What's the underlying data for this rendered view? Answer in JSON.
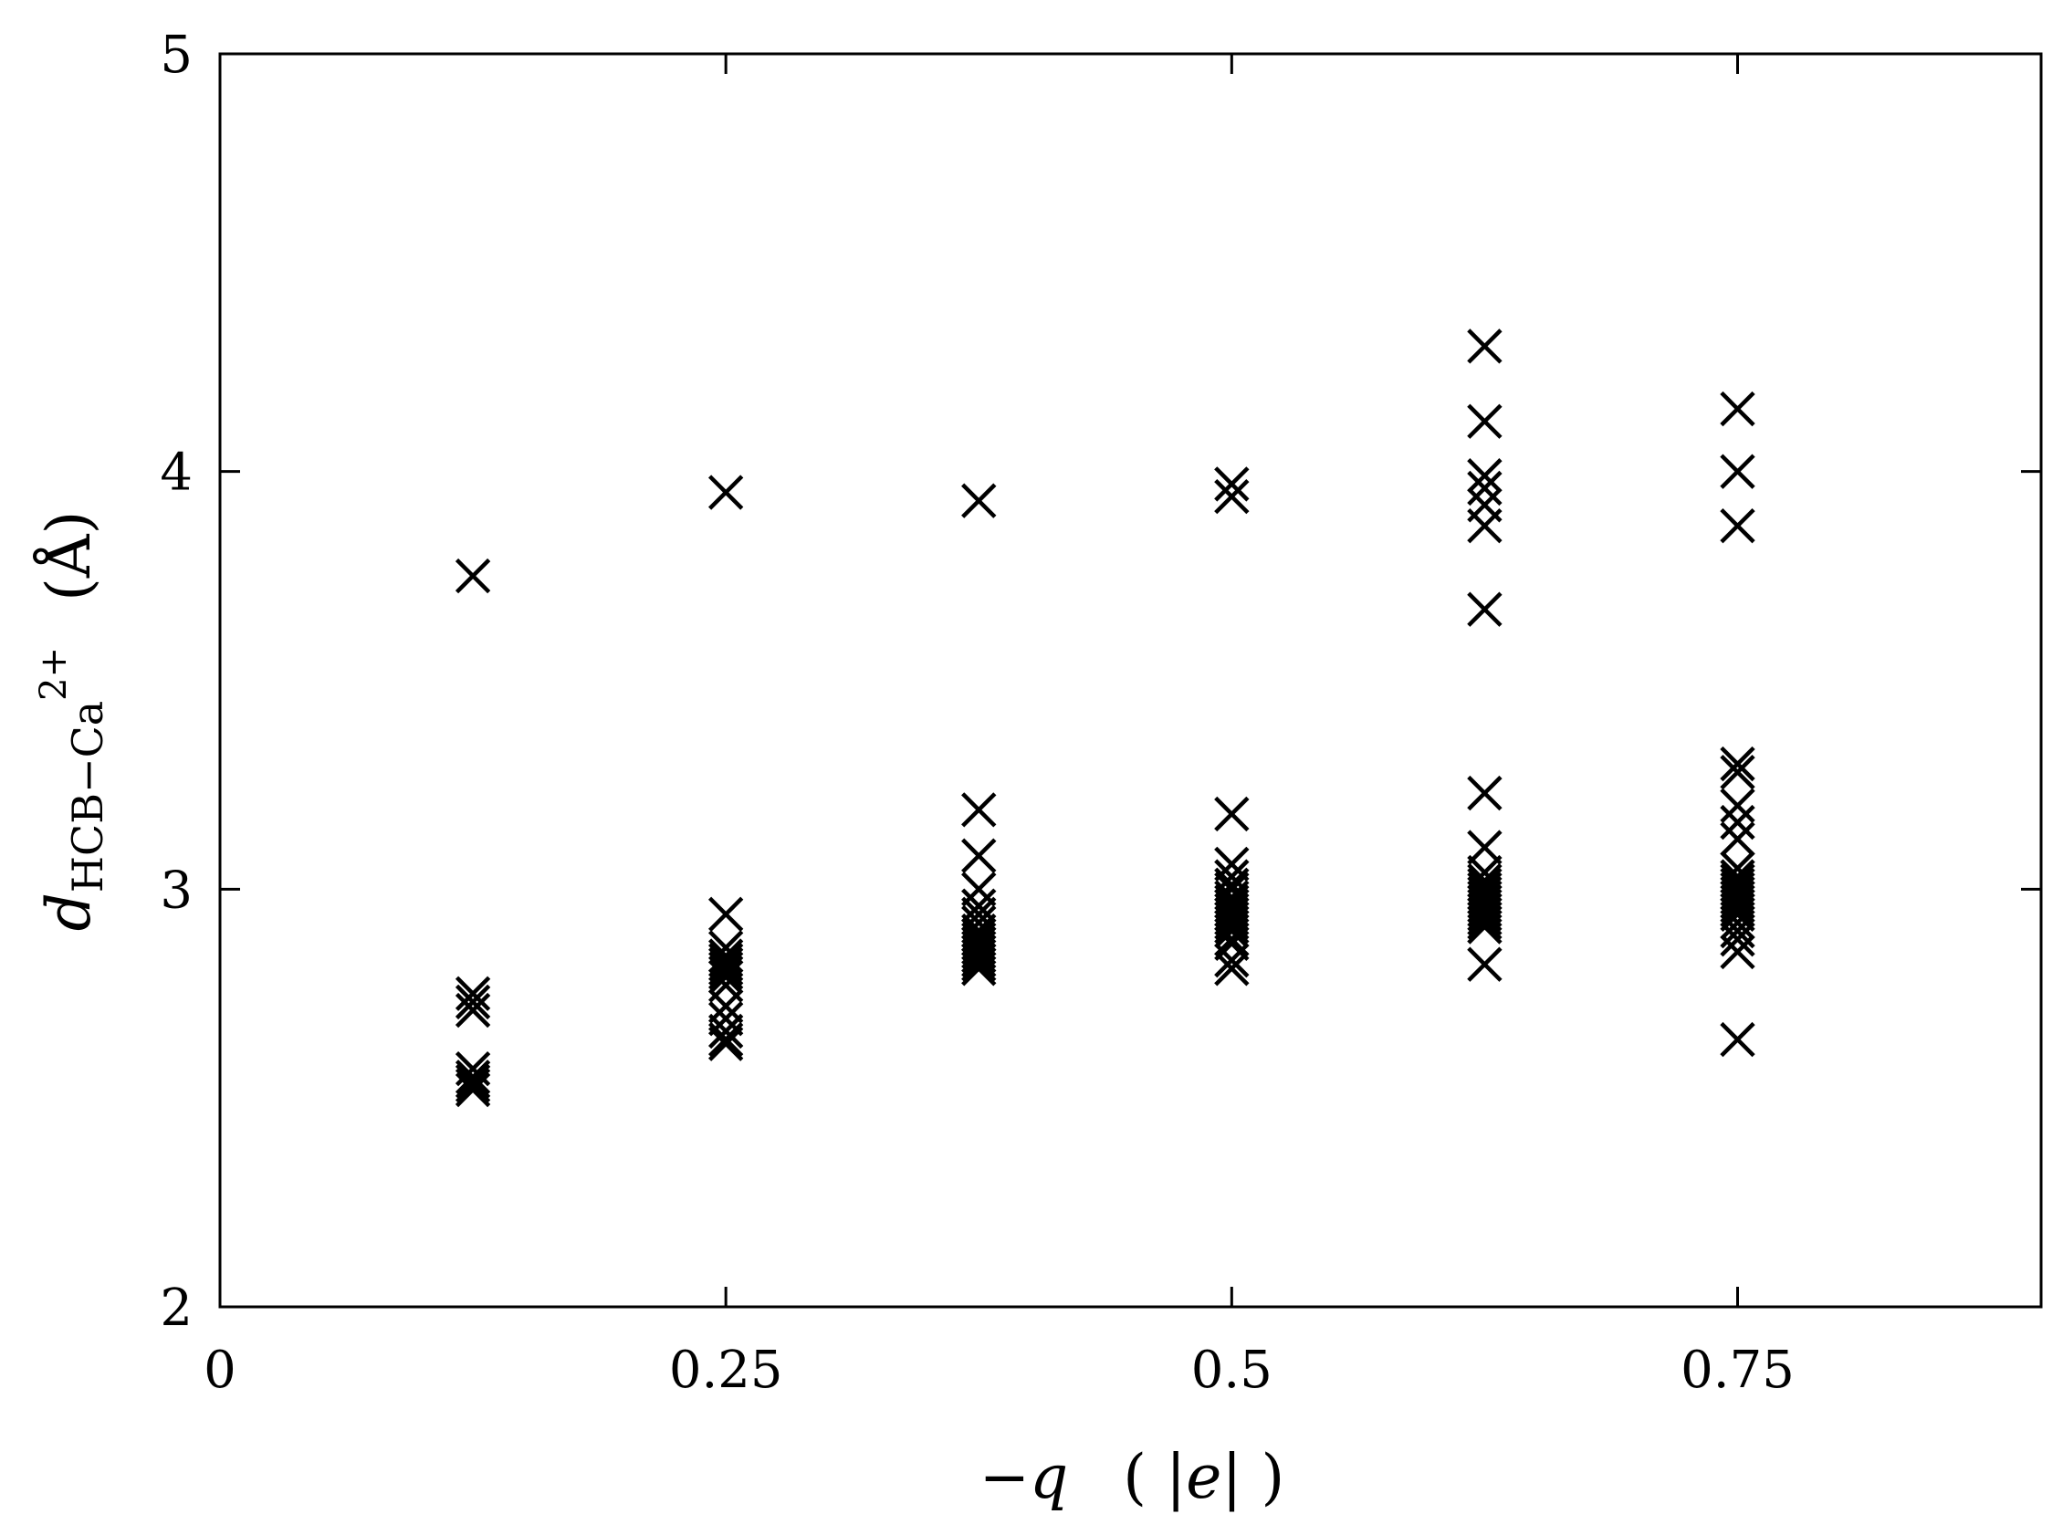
{
  "chart_data": {
    "type": "scatter",
    "title": "",
    "xlabel": {
      "prefix": "−",
      "var": "q",
      "unit_open": "( |",
      "unit_var": "e",
      "unit_close": "| )"
    },
    "ylabel": {
      "var": "d",
      "subscript": "HCB−Ca",
      "superscript": "2+",
      "unit": "(Å)"
    },
    "xlim": [
      0,
      0.9
    ],
    "ylim": [
      2,
      5
    ],
    "xticks": [
      {
        "value": 0,
        "label": "0"
      },
      {
        "value": 0.25,
        "label": "0.25"
      },
      {
        "value": 0.5,
        "label": "0.5"
      },
      {
        "value": 0.75,
        "label": "0.75"
      }
    ],
    "yticks": [
      {
        "value": 2,
        "label": "2"
      },
      {
        "value": 3,
        "label": "3"
      },
      {
        "value": 4,
        "label": "4"
      },
      {
        "value": 5,
        "label": "5"
      }
    ],
    "marker": "x",
    "color": "#000000",
    "grid": false,
    "legend": "none",
    "series": [
      {
        "x": 0.125,
        "y": [
          3.75,
          2.75,
          2.73,
          2.71,
          2.57,
          2.55,
          2.54,
          2.53,
          2.52
        ]
      },
      {
        "x": 0.25,
        "y": [
          3.95,
          2.94,
          2.86,
          2.84,
          2.83,
          2.82,
          2.81,
          2.8,
          2.79,
          2.77,
          2.72,
          2.69,
          2.66,
          2.64,
          2.63
        ]
      },
      {
        "x": 0.375,
        "y": [
          3.93,
          3.19,
          3.08,
          3.0,
          2.96,
          2.94,
          2.92,
          2.9,
          2.89,
          2.88,
          2.87,
          2.86,
          2.85,
          2.84,
          2.83,
          2.82,
          2.81
        ]
      },
      {
        "x": 0.5,
        "y": [
          3.97,
          3.94,
          3.18,
          3.06,
          3.03,
          3.01,
          3.0,
          2.98,
          2.97,
          2.96,
          2.95,
          2.94,
          2.93,
          2.92,
          2.91,
          2.9,
          2.88,
          2.87,
          2.83,
          2.81
        ]
      },
      {
        "x": 0.625,
        "y": [
          4.3,
          4.12,
          3.99,
          3.96,
          3.92,
          3.87,
          3.67,
          3.23,
          3.1,
          3.04,
          3.02,
          3.01,
          3.0,
          2.99,
          2.98,
          2.97,
          2.96,
          2.95,
          2.94,
          2.93,
          2.92,
          2.91,
          2.82
        ]
      },
      {
        "x": 0.75,
        "y": [
          4.15,
          4.0,
          3.87,
          3.3,
          3.28,
          3.2,
          3.16,
          3.12,
          3.05,
          3.03,
          3.02,
          3.01,
          3.0,
          2.99,
          2.98,
          2.97,
          2.96,
          2.95,
          2.94,
          2.92,
          2.9,
          2.88,
          2.85,
          2.64
        ]
      }
    ]
  }
}
